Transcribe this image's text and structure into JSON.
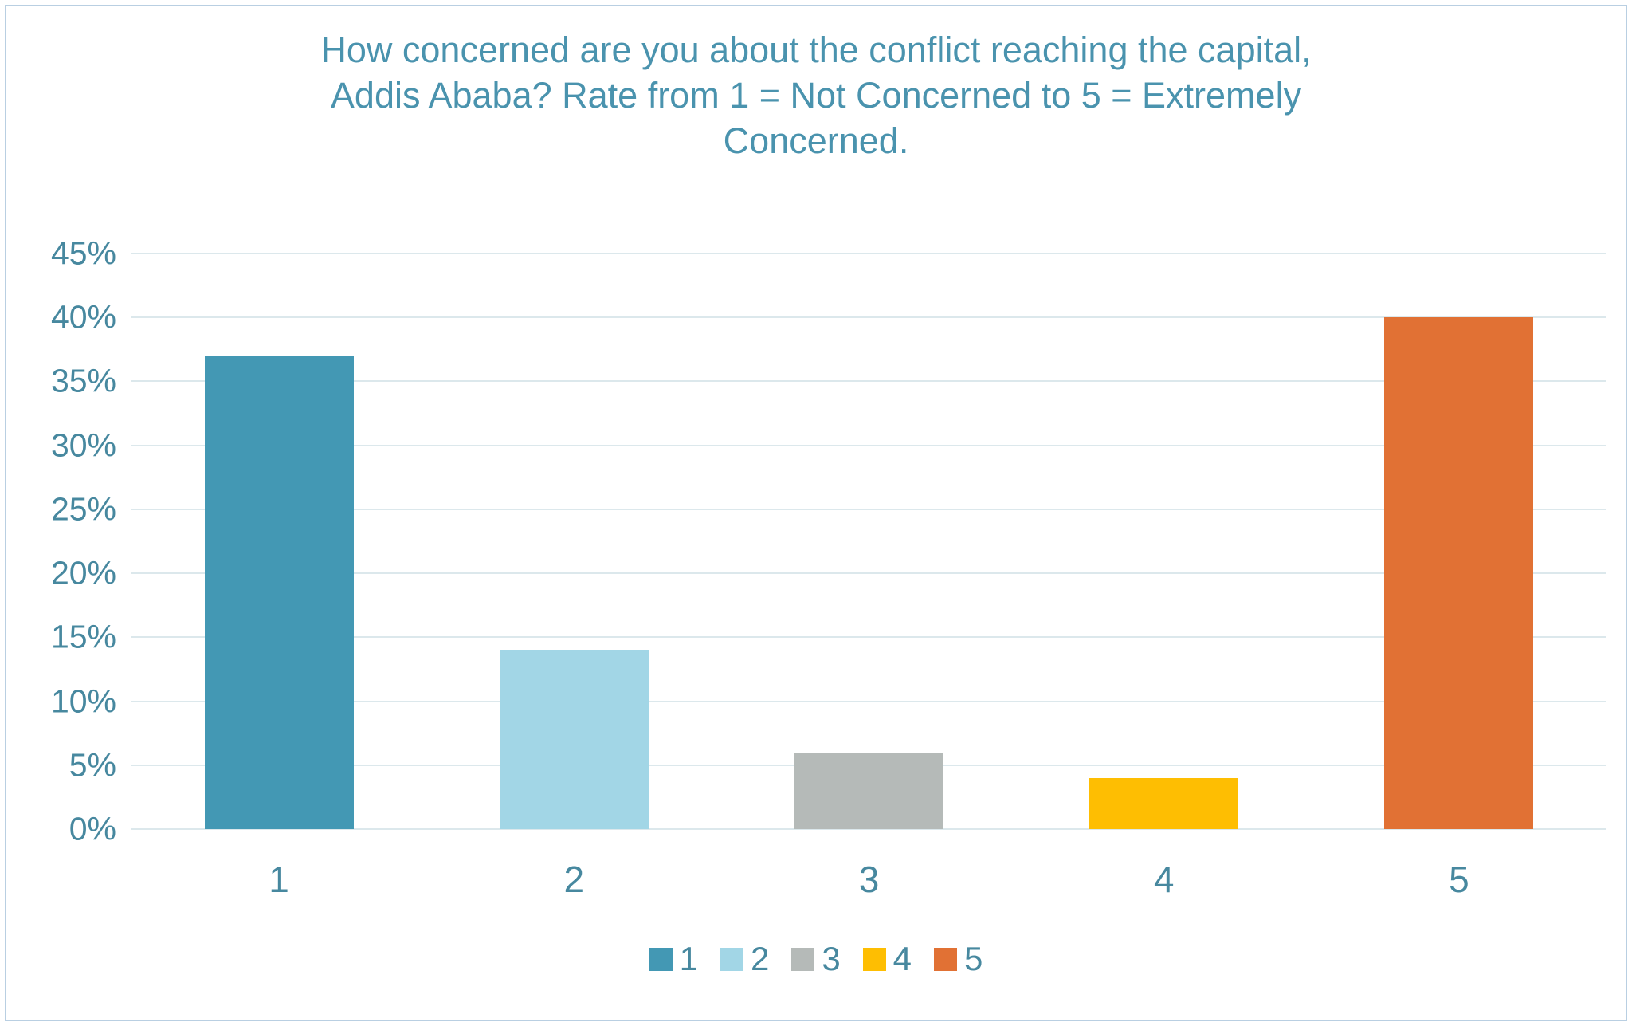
{
  "chart_data": {
    "type": "bar",
    "title": "How concerned are you about the conflict reaching the capital, Addis Ababa? Rate from 1 = Not Concerned to 5 = Extremely Concerned.",
    "title_lines": [
      "How concerned are you about the conflict reaching the capital,",
      "Addis Ababa? Rate from 1 = Not Concerned to 5 = Extremely",
      "Concerned."
    ],
    "categories": [
      "1",
      "2",
      "3",
      "4",
      "5"
    ],
    "values": [
      37,
      14,
      6,
      4,
      40
    ],
    "unit": "%",
    "bar_colors": [
      "#4398B4",
      "#A2D6E6",
      "#B5BAB8",
      "#FEBE02",
      "#E17134"
    ],
    "xlabel": "",
    "ylabel": "",
    "ylim": [
      0,
      45
    ],
    "ytick_step": 5,
    "ytick_labels": [
      "0%",
      "5%",
      "10%",
      "15%",
      "20%",
      "25%",
      "30%",
      "35%",
      "40%",
      "45%"
    ],
    "grid": true,
    "legend": {
      "position": "bottom",
      "entries": [
        "1",
        "2",
        "3",
        "4",
        "5"
      ]
    }
  },
  "colors": {
    "title_text": "#4A93AE",
    "axis_text": "#47889F",
    "gridline": "#DCE8EC",
    "page_border": "#B9CFE2",
    "background": "#FFFFFF"
  }
}
